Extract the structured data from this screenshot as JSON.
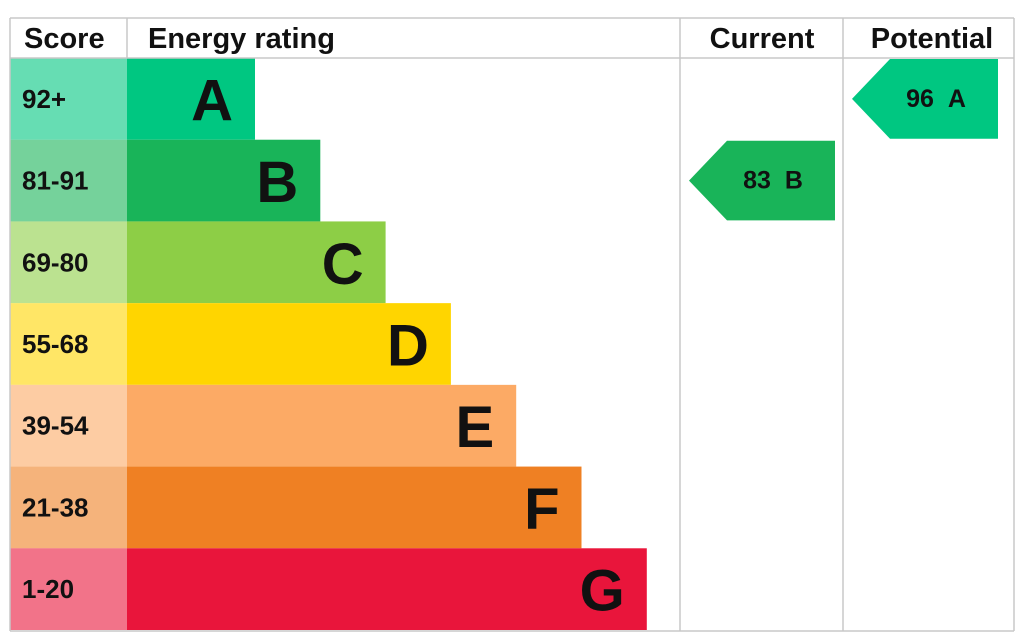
{
  "header": {
    "score": "Score",
    "rating": "Energy rating",
    "current": "Current",
    "potential": "Potential"
  },
  "bands": [
    {
      "score": "92+",
      "letter": "A",
      "color": "#00c781"
    },
    {
      "score": "81-91",
      "letter": "B",
      "color": "#19b459"
    },
    {
      "score": "69-80",
      "letter": "C",
      "color": "#8dce46"
    },
    {
      "score": "55-68",
      "letter": "D",
      "color": "#ffd500"
    },
    {
      "score": "39-54",
      "letter": "E",
      "color": "#fcaa65"
    },
    {
      "score": "21-38",
      "letter": "F",
      "color": "#ef8023"
    },
    {
      "score": "1-20",
      "letter": "G",
      "color": "#e9153b"
    }
  ],
  "current": {
    "value": 83,
    "letter": "B"
  },
  "potential": {
    "value": 96,
    "letter": "A"
  }
}
